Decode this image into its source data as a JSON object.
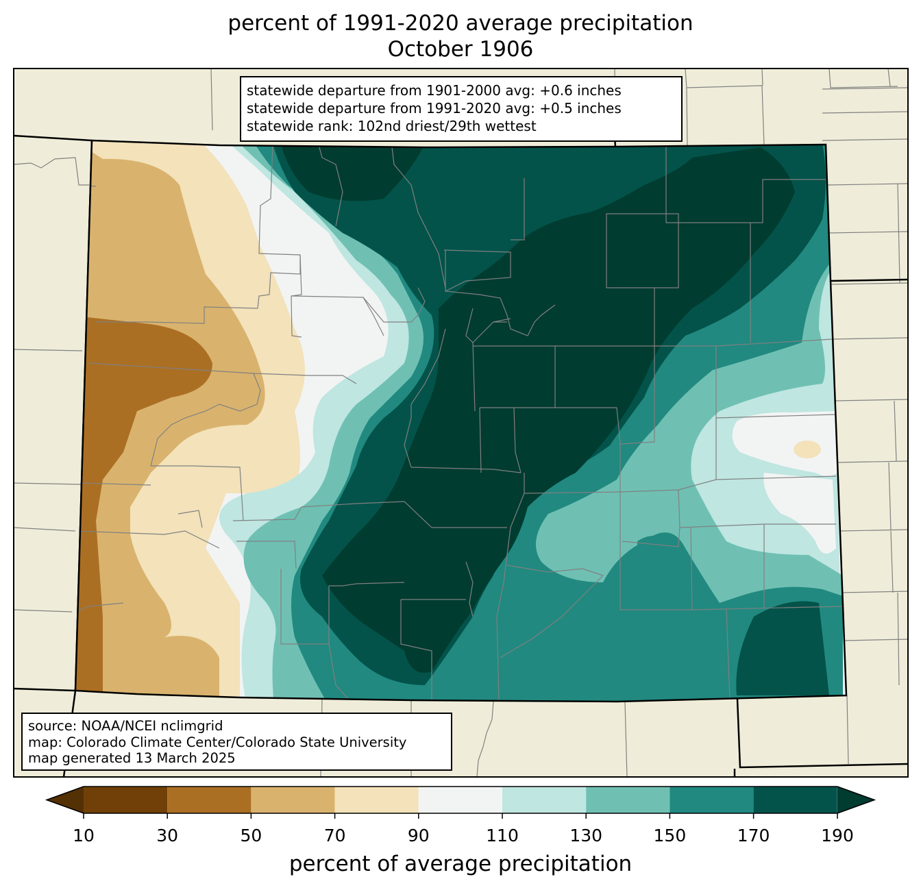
{
  "title": {
    "line1": "percent of 1991-2020 average precipitation",
    "line2": "October 1906"
  },
  "stats": {
    "line1": "statewide departure from 1901-2000 avg: +0.6 inches",
    "line2": "statewide departure from 1991-2020 avg: +0.5 inches",
    "line3": "statewide rank: 102nd driest/29th wettest"
  },
  "source": {
    "line1": "source: NOAA/NCEI nclimgrid",
    "line2": "map: Colorado Climate Center/Colorado State University",
    "line3": "map generated 13 March 2025"
  },
  "colorbar": {
    "label": "percent of average precipitation",
    "ticks": [
      "10",
      "30",
      "50",
      "70",
      "90",
      "110",
      "130",
      "150",
      "170",
      "190"
    ],
    "colors": {
      "under": "#543005",
      "c10_30": "#704008",
      "c30_50": "#ab6f23",
      "c50_70": "#d9b36e",
      "c70_90": "#f3e2ba",
      "c90_110": "#f2f4f3",
      "c110_130": "#bfe6e1",
      "c130_150": "#6fc0b3",
      "c150_170": "#218980",
      "c170_190": "#03534a",
      "over": "#003c30"
    }
  },
  "map_colors": {
    "background_land": "#efedd9",
    "county_lines": "#808080",
    "state_lines": "#000000"
  }
}
